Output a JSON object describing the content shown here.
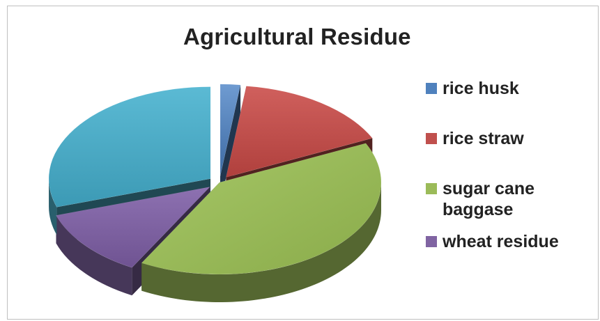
{
  "chart_data": {
    "type": "pie",
    "title": "Agricultural Residue",
    "categories": [
      "rice husk",
      "rice straw",
      "sugar cane baggase",
      "wheat residue",
      ""
    ],
    "values": [
      2,
      16,
      40,
      12,
      30
    ],
    "colors": [
      "#4f81bd",
      "#c0504d",
      "#9bbb59",
      "#8064a2",
      "#4bacc6"
    ],
    "exploded": true,
    "three_d": true,
    "legend": {
      "position": "right",
      "entries": [
        "rice husk",
        "rice straw",
        "sugar cane baggase",
        "wheat residue"
      ]
    }
  }
}
